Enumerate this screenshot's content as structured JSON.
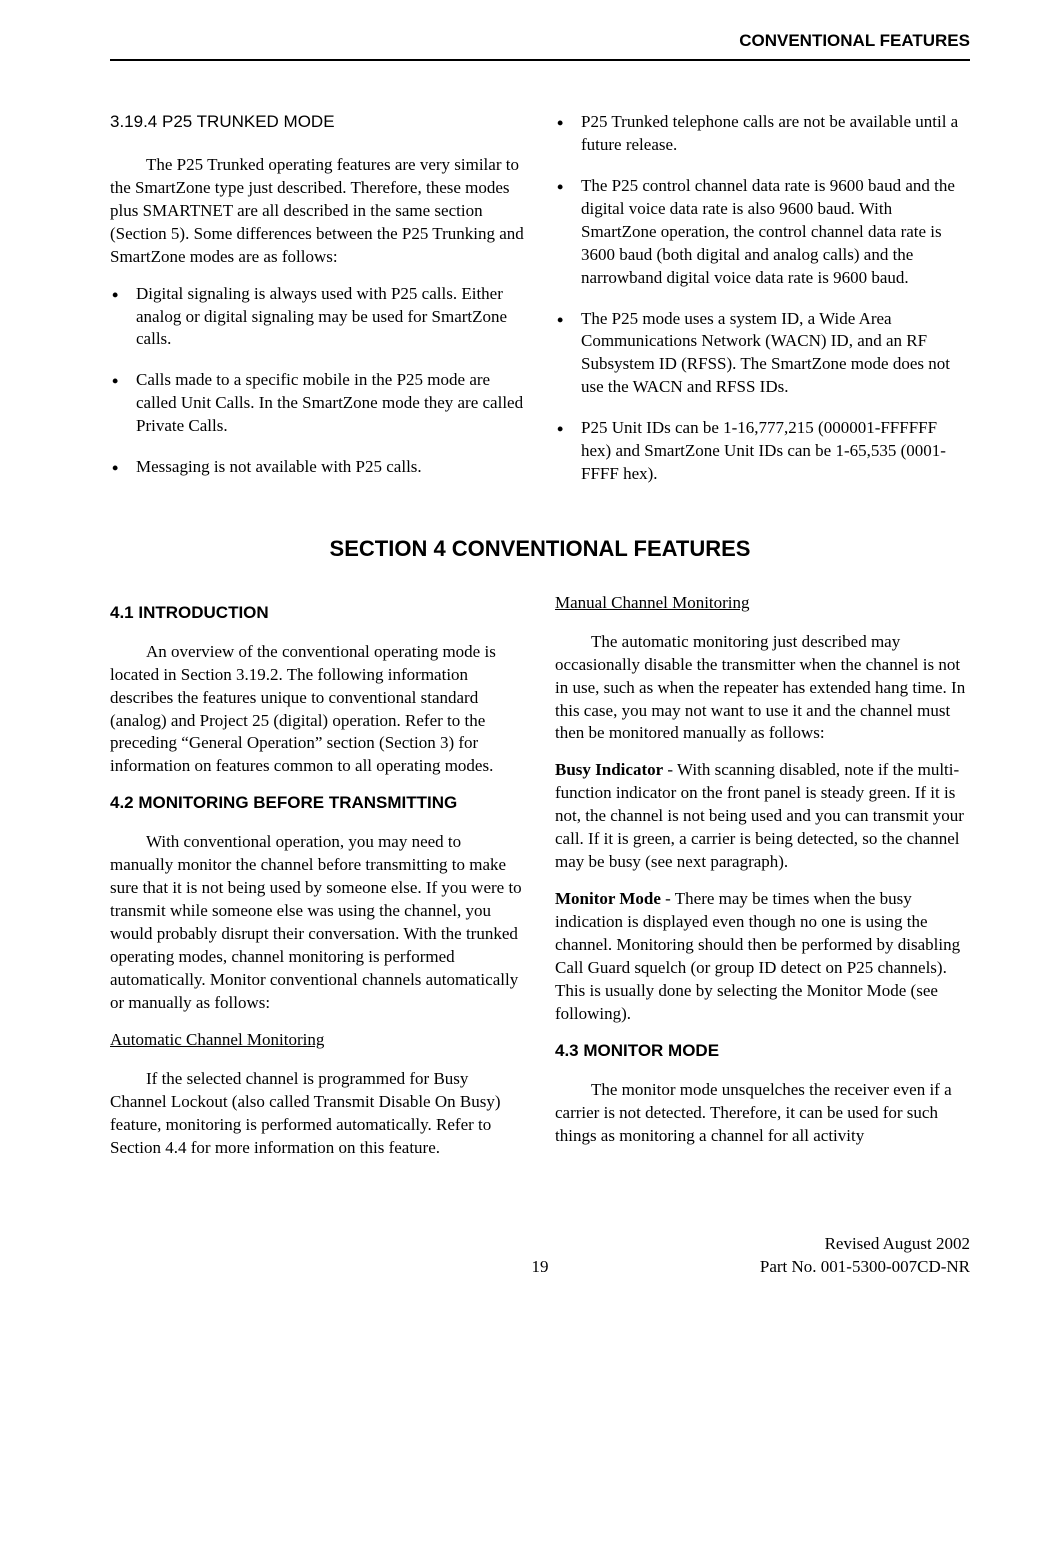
{
  "header": {
    "right": "CONVENTIONAL FEATURES"
  },
  "upper": {
    "left": {
      "title": "3.19.4  P25 TRUNKED MODE",
      "intro": "The P25 Trunked operating features are very similar to the SmartZone type just described. Therefore, these modes plus SMARTNET are all described in the same section (Section 5). Some differences between the P25 Trunking and SmartZone modes are as follows:",
      "bullets": [
        "Digital signaling is always used with P25 calls. Either analog or digital signaling may be used for SmartZone calls.",
        "Calls made to a specific mobile in the P25 mode are called Unit Calls. In the SmartZone mode they are called Private Calls.",
        "Messaging is not available with P25 calls."
      ]
    },
    "right": {
      "bullets": [
        "P25 Trunked telephone calls are not be available until a future release.",
        "The P25 control channel data rate is 9600 baud and the digital voice data rate is also 9600 baud. With SmartZone operation, the control channel data rate is 3600 baud (both digital and analog calls) and the narrowband digital voice data rate is 9600 baud.",
        "The P25 mode uses a system ID, a Wide Area Communications Network (WACN) ID, and an RF Subsystem ID (RFSS). The SmartZone mode does not use the WACN and RFSS IDs.",
        "P25 Unit IDs can be 1-16,777,215 (000001-FFFFFF hex) and SmartZone Unit IDs can be 1-65,535 (0001-FFFF hex)."
      ]
    }
  },
  "section_title": "SECTION 4   CONVENTIONAL FEATURES",
  "lower": {
    "left": {
      "h1": "4.1 INTRODUCTION",
      "p1": "An overview of the conventional operating mode is located in Section 3.19.2. The following information describes the features unique to conventional standard (analog) and Project 25 (digital) operation. Refer to the preceding “General Operation” section (Section 3) for information on features common to all operating modes.",
      "h2": "4.2 MONITORING BEFORE TRANSMITTING",
      "p2": "With conventional operation, you may need to manually monitor the channel before transmitting to make sure that it is not being used by someone else. If you were to transmit while someone else was using the channel, you would probably disrupt their conversation. With the trunked operating modes, channel monitoring is performed automatically. Monitor conventional channels automatically or manually as follows:",
      "u1": "Automatic Channel Monitoring",
      "p3": "If the selected channel is programmed for Busy Channel Lockout (also called Transmit Disable On Busy) feature, monitoring is performed automatically. Refer to Section 4.4 for more information on this feature."
    },
    "right": {
      "u1": "Manual Channel Monitoring",
      "p1": "The automatic monitoring just described may occasionally disable the transmitter when the channel is not in use, such as when the repeater has extended hang time. In this case, you may not want to use it and the channel must then be monitored manually as follows:",
      "b1_label": "Busy Indicator",
      "b1_text": " - With scanning disabled, note if the multi-function indicator on the front panel is steady green. If it is not, the channel is not being used and you can transmit your call. If it is green, a carrier is being detected, so the channel may be busy (see next paragraph).",
      "b2_label": "Monitor Mode",
      "b2_text": " - There may be times when the busy indication is displayed even though no one is using the channel. Monitoring should then be performed by disabling Call Guard squelch (or group ID detect on P25 channels). This is usually done by selecting the Monitor Mode (see following).",
      "h3": "4.3 MONITOR MODE",
      "p4": "The monitor mode unsquelches the receiver even if a carrier is not detected. Therefore, it can be used for such things as monitoring a channel for all activity"
    }
  },
  "footer": {
    "page": "19",
    "rev": "Revised August 2002",
    "part": "Part No. 001-5300-007CD-NR"
  }
}
